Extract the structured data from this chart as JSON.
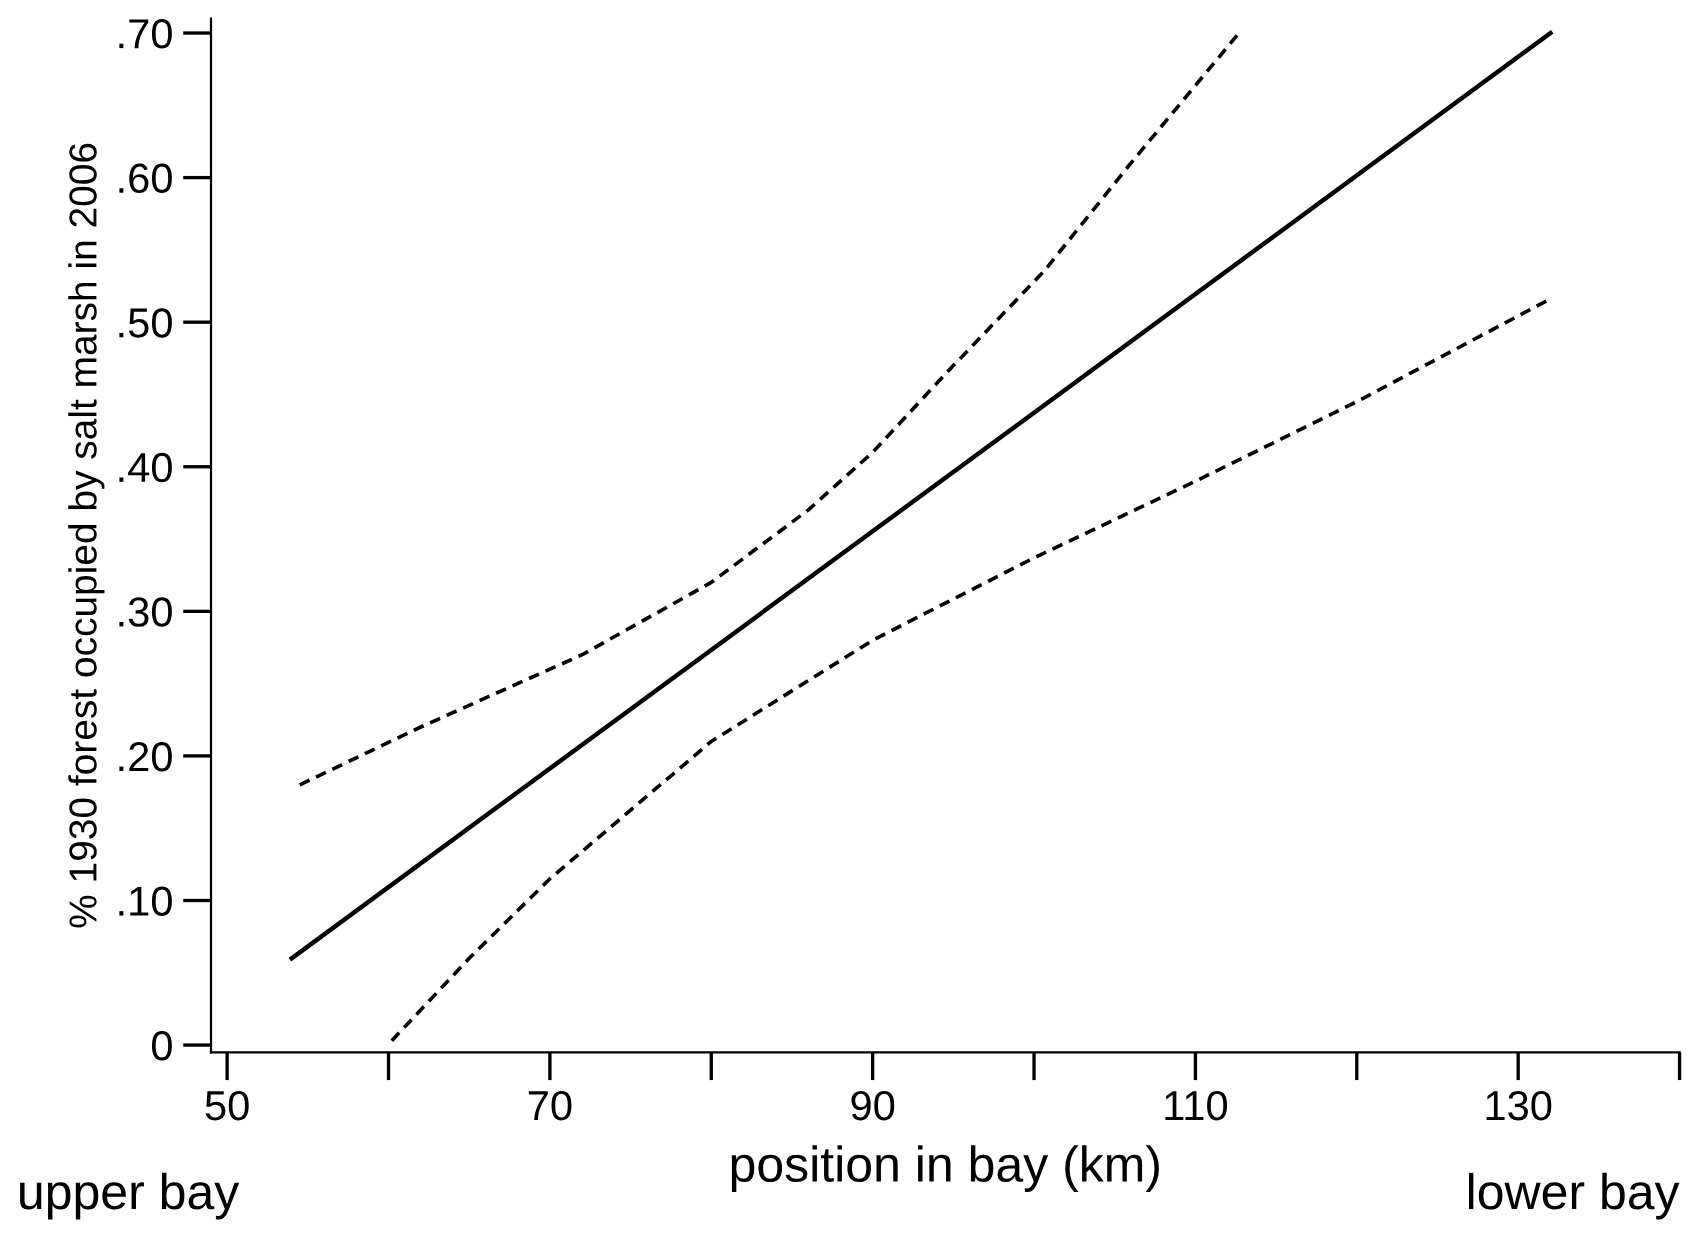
{
  "chart_data": {
    "type": "line",
    "xlabel": "position in bay (km)",
    "ylabel": "% 1930 forest occupied by salt marsh in 2006",
    "series": [
      {
        "color": "#000000",
        "line_style": "solid",
        "x": [
          54,
          132
        ],
        "values": [
          0.06,
          0.7
        ]
      },
      {
        "color": "#000000",
        "line_style": "dashed",
        "x": [
          54.5,
          62,
          72,
          80,
          86,
          90,
          95,
          100.6,
          106,
          112.7
        ],
        "values": [
          0.18,
          0.22,
          0.27,
          0.32,
          0.37,
          0.41,
          0.47,
          0.535,
          0.61,
          0.7
        ]
      },
      {
        "color": "#000000",
        "line_style": "dashed",
        "x": [
          60.2,
          65,
          70,
          80,
          90,
          100,
          110,
          120,
          131.8
        ],
        "values": [
          0.003,
          0.06,
          0.115,
          0.21,
          0.28,
          0.337,
          0.39,
          0.445,
          0.515
        ]
      }
    ],
    "xlim": [
      49,
      140
    ],
    "ylim": [
      -0.005,
      0.71
    ],
    "xticks": [
      50,
      {
        "value": 60,
        "label": null
      },
      70,
      {
        "value": 80,
        "label": null
      },
      90,
      {
        "value": 100,
        "label": null
      },
      110,
      {
        "value": 120,
        "label": null
      },
      130,
      {
        "value": 140,
        "label": null
      }
    ],
    "yticks": [
      {
        "value": 0,
        "label": "0"
      },
      {
        "value": 0.1,
        "label": ".10"
      },
      {
        "value": 0.2,
        "label": ".20"
      },
      {
        "value": 0.3,
        "label": ".30"
      },
      {
        "value": 0.4,
        "label": ".40"
      },
      {
        "value": 0.5,
        "label": ".50"
      },
      {
        "value": 0.6,
        "label": ".60"
      },
      {
        "value": 0.7,
        "label": ".70"
      }
    ],
    "annotations": [
      "upper bay",
      "lower bay"
    ],
    "grid": false,
    "legend": false
  }
}
